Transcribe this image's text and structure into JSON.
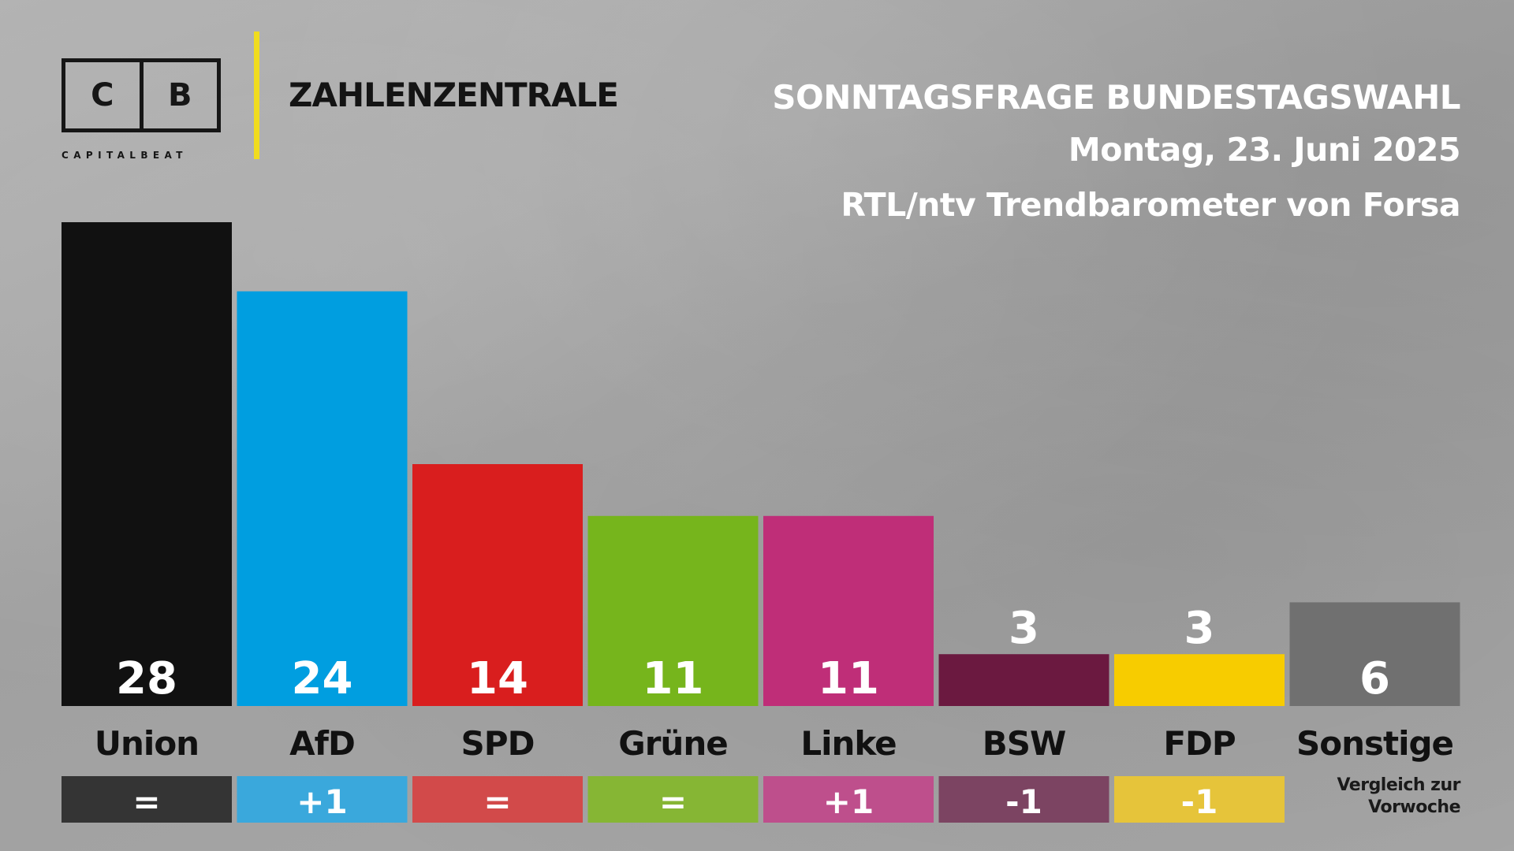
{
  "brand": {
    "logo_left": "C",
    "logo_right": "B",
    "logo_sub": "CAPITALBEAT",
    "section": "ZAHLENZENTRALE",
    "accent": "#f0dc1e"
  },
  "header": {
    "title": "SONNTAGSFRAGE BUNDESTAGSWAHL",
    "date": "Montag, 23. Juni 2025",
    "source": "RTL/ntv Trendbarometer von Forsa"
  },
  "chart_data": {
    "type": "bar",
    "categories": [
      "Union",
      "AfD",
      "SPD",
      "Grüne",
      "Linke",
      "BSW",
      "FDP",
      "Sonstige"
    ],
    "values": [
      28,
      24,
      14,
      11,
      11,
      3,
      3,
      6
    ],
    "value_labels": [
      "28",
      "24",
      "14",
      "11",
      "11",
      "3",
      "3",
      "6"
    ],
    "changes": [
      "=",
      "+1",
      "=",
      "=",
      "+1",
      "-1",
      "-1"
    ],
    "colors": [
      "#111111",
      "#009ee0",
      "#d91e1e",
      "#76b51c",
      "#bf2e78",
      "#6b1940",
      "#f7cc00",
      "#707070"
    ],
    "change_colors": [
      "#343434",
      "#3aa8dc",
      "#d24a4a",
      "#86b634",
      "#be4f8c",
      "#7c4462",
      "#e6c43a"
    ],
    "change_note": "Vergleich zur Vorwoche",
    "ylim": [
      0,
      28
    ]
  }
}
